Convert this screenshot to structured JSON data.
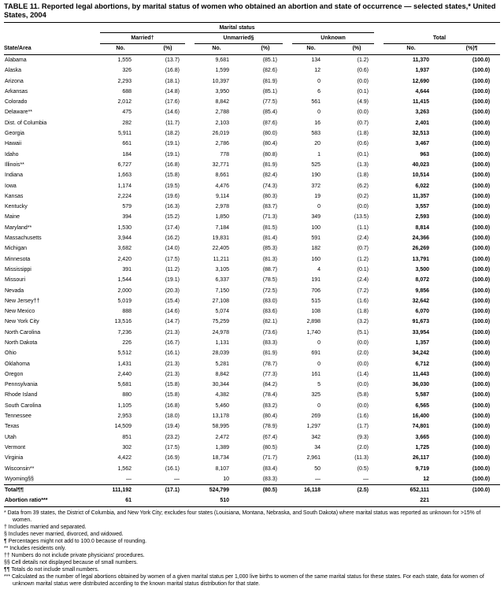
{
  "title": "TABLE 11. Reported legal abortions, by marital status of women who obtained an abortion and state of occurrence — selected states,* United States, 2004",
  "table": {
    "group_header": "Marital status",
    "state_col_header": "State/Area",
    "col_groups": [
      {
        "label": "Married†"
      },
      {
        "label": "Unmarried§"
      },
      {
        "label": "Unknown"
      },
      {
        "label": "Total"
      }
    ],
    "subheaders": [
      "No.",
      "(%)",
      "No.",
      "(%)",
      "No.",
      "(%)",
      "No.",
      "(%)¶"
    ],
    "rows": [
      [
        "Alabama",
        "1,555",
        "(13.7)",
        "9,681",
        "(85.1)",
        "134",
        "(1.2)",
        "11,370",
        "(100.0)"
      ],
      [
        "Alaska",
        "326",
        "(16.8)",
        "1,599",
        "(82.6)",
        "12",
        "(0.6)",
        "1,937",
        "(100.0)"
      ],
      [
        "Arizona",
        "2,293",
        "(18.1)",
        "10,397",
        "(81.9)",
        "0",
        "(0.0)",
        "12,690",
        "(100.0)"
      ],
      [
        "Arkansas",
        "688",
        "(14.8)",
        "3,950",
        "(85.1)",
        "6",
        "(0.1)",
        "4,644",
        "(100.0)"
      ],
      [
        "Colorado",
        "2,012",
        "(17.6)",
        "8,842",
        "(77.5)",
        "561",
        "(4.9)",
        "11,415",
        "(100.0)"
      ],
      [
        "Delaware**",
        "475",
        "(14.6)",
        "2,788",
        "(85.4)",
        "0",
        "(0.0)",
        "3,263",
        "(100.0)"
      ],
      [
        "Dist. of Columbia",
        "282",
        "(11.7)",
        "2,103",
        "(87.6)",
        "16",
        "(0.7)",
        "2,401",
        "(100.0)"
      ],
      [
        "Georgia",
        "5,911",
        "(18.2)",
        "26,019",
        "(80.0)",
        "583",
        "(1.8)",
        "32,513",
        "(100.0)"
      ],
      [
        "Hawaii",
        "661",
        "(19.1)",
        "2,786",
        "(80.4)",
        "20",
        "(0.6)",
        "3,467",
        "(100.0)"
      ],
      [
        "Idaho",
        "184",
        "(19.1)",
        "778",
        "(80.8)",
        "1",
        "(0.1)",
        "963",
        "(100.0)"
      ],
      [
        "Illinois**",
        "6,727",
        "(16.8)",
        "32,771",
        "(81.9)",
        "525",
        "(1.3)",
        "40,023",
        "(100.0)"
      ],
      [
        "Indiana",
        "1,663",
        "(15.8)",
        "8,661",
        "(82.4)",
        "190",
        "(1.8)",
        "10,514",
        "(100.0)"
      ],
      [
        "Iowa",
        "1,174",
        "(19.5)",
        "4,476",
        "(74.3)",
        "372",
        "(6.2)",
        "6,022",
        "(100.0)"
      ],
      [
        "Kansas",
        "2,224",
        "(19.6)",
        "9,114",
        "(80.3)",
        "19",
        "(0.2)",
        "11,357",
        "(100.0)"
      ],
      [
        "Kentucky",
        "579",
        "(16.3)",
        "2,978",
        "(83.7)",
        "0",
        "(0.0)",
        "3,557",
        "(100.0)"
      ],
      [
        "Maine",
        "394",
        "(15.2)",
        "1,850",
        "(71.3)",
        "349",
        "(13.5)",
        "2,593",
        "(100.0)"
      ],
      [
        "Maryland**",
        "1,530",
        "(17.4)",
        "7,184",
        "(81.5)",
        "100",
        "(1.1)",
        "8,814",
        "(100.0)"
      ],
      [
        "Massachusetts",
        "3,944",
        "(16.2)",
        "19,831",
        "(81.4)",
        "591",
        "(2.4)",
        "24,366",
        "(100.0)"
      ],
      [
        "Michigan",
        "3,682",
        "(14.0)",
        "22,405",
        "(85.3)",
        "182",
        "(0.7)",
        "26,269",
        "(100.0)"
      ],
      [
        "Minnesota",
        "2,420",
        "(17.5)",
        "11,211",
        "(81.3)",
        "160",
        "(1.2)",
        "13,791",
        "(100.0)"
      ],
      [
        "Mississippi",
        "391",
        "(11.2)",
        "3,105",
        "(88.7)",
        "4",
        "(0.1)",
        "3,500",
        "(100.0)"
      ],
      [
        "Missouri",
        "1,544",
        "(19.1)",
        "6,337",
        "(78.5)",
        "191",
        "(2.4)",
        "8,072",
        "(100.0)"
      ],
      [
        "Nevada",
        "2,000",
        "(20.3)",
        "7,150",
        "(72.5)",
        "706",
        "(7.2)",
        "9,856",
        "(100.0)"
      ],
      [
        "New Jersey††",
        "5,019",
        "(15.4)",
        "27,108",
        "(83.0)",
        "515",
        "(1.6)",
        "32,642",
        "(100.0)"
      ],
      [
        "New Mexico",
        "888",
        "(14.6)",
        "5,074",
        "(83.6)",
        "108",
        "(1.8)",
        "6,070",
        "(100.0)"
      ],
      [
        "New York City",
        "13,516",
        "(14.7)",
        "75,259",
        "(82.1)",
        "2,898",
        "(3.2)",
        "91,673",
        "(100.0)"
      ],
      [
        "North Carolina",
        "7,236",
        "(21.3)",
        "24,978",
        "(73.6)",
        "1,740",
        "(5.1)",
        "33,954",
        "(100.0)"
      ],
      [
        "North Dakota",
        "226",
        "(16.7)",
        "1,131",
        "(83.3)",
        "0",
        "(0.0)",
        "1,357",
        "(100.0)"
      ],
      [
        "Ohio",
        "5,512",
        "(16.1)",
        "28,039",
        "(81.9)",
        "691",
        "(2.0)",
        "34,242",
        "(100.0)"
      ],
      [
        "Oklahoma",
        "1,431",
        "(21.3)",
        "5,281",
        "(78.7)",
        "0",
        "(0.0)",
        "6,712",
        "(100.0)"
      ],
      [
        "Oregon",
        "2,440",
        "(21.3)",
        "8,842",
        "(77.3)",
        "161",
        "(1.4)",
        "11,443",
        "(100.0)"
      ],
      [
        "Pennsylvania",
        "5,681",
        "(15.8)",
        "30,344",
        "(84.2)",
        "5",
        "(0.0)",
        "36,030",
        "(100.0)"
      ],
      [
        "Rhode Island",
        "880",
        "(15.8)",
        "4,382",
        "(78.4)",
        "325",
        "(5.8)",
        "5,587",
        "(100.0)"
      ],
      [
        "South Carolina",
        "1,105",
        "(16.8)",
        "5,460",
        "(83.2)",
        "0",
        "(0.0)",
        "6,565",
        "(100.0)"
      ],
      [
        "Tennessee",
        "2,953",
        "(18.0)",
        "13,178",
        "(80.4)",
        "269",
        "(1.6)",
        "16,400",
        "(100.0)"
      ],
      [
        "Texas",
        "14,509",
        "(19.4)",
        "58,995",
        "(78.9)",
        "1,297",
        "(1.7)",
        "74,801",
        "(100.0)"
      ],
      [
        "Utah",
        "851",
        "(23.2)",
        "2,472",
        "(67.4)",
        "342",
        "(9.3)",
        "3,665",
        "(100.0)"
      ],
      [
        "Vermont",
        "302",
        "(17.5)",
        "1,389",
        "(80.5)",
        "34",
        "(2.0)",
        "1,725",
        "(100.0)"
      ],
      [
        "Virginia",
        "4,422",
        "(16.9)",
        "18,734",
        "(71.7)",
        "2,961",
        "(11.3)",
        "26,117",
        "(100.0)"
      ],
      [
        "Wisconsin**",
        "1,562",
        "(16.1)",
        "8,107",
        "(83.4)",
        "50",
        "(0.5)",
        "9,719",
        "(100.0)"
      ],
      [
        "Wyoming§§",
        "—",
        "—",
        "10",
        "(83.3)",
        "—",
        "—",
        "12",
        "(100.0)"
      ]
    ],
    "total_row": [
      "Total¶¶",
      "111,192",
      "(17.1)",
      "524,799",
      "(80.5)",
      "16,118",
      "(2.5)",
      "652,111",
      "(100.0)"
    ],
    "ratio_row": [
      "Abortion ratio***",
      "61",
      "",
      "510",
      "",
      "",
      "",
      "221",
      ""
    ]
  },
  "footnotes": [
    "* Data from 39 states, the District of Columbia, and New York City; excludes four states (Louisiana, Montana, Nebraska, and South Dakota) where marital status was reported as unknown for >15% of women.",
    "† Includes married and separated.",
    "§ Includes never married, divorced, and widowed.",
    "¶ Percentages might not add to 100.0 because of rounding.",
    "** Includes residents only.",
    "†† Numbers do not include private physicians' procedures.",
    "§§ Cell details not displayed because of small numbers.",
    "¶¶ Totals do not include small numbers.",
    "*** Calculated as the number of legal abortions obtained by women of a given marital status per 1,000 live births to women of the same marital status for these states. For each state, data for women of unknown marital status were distributed according to the known marital status distribution for that state."
  ]
}
